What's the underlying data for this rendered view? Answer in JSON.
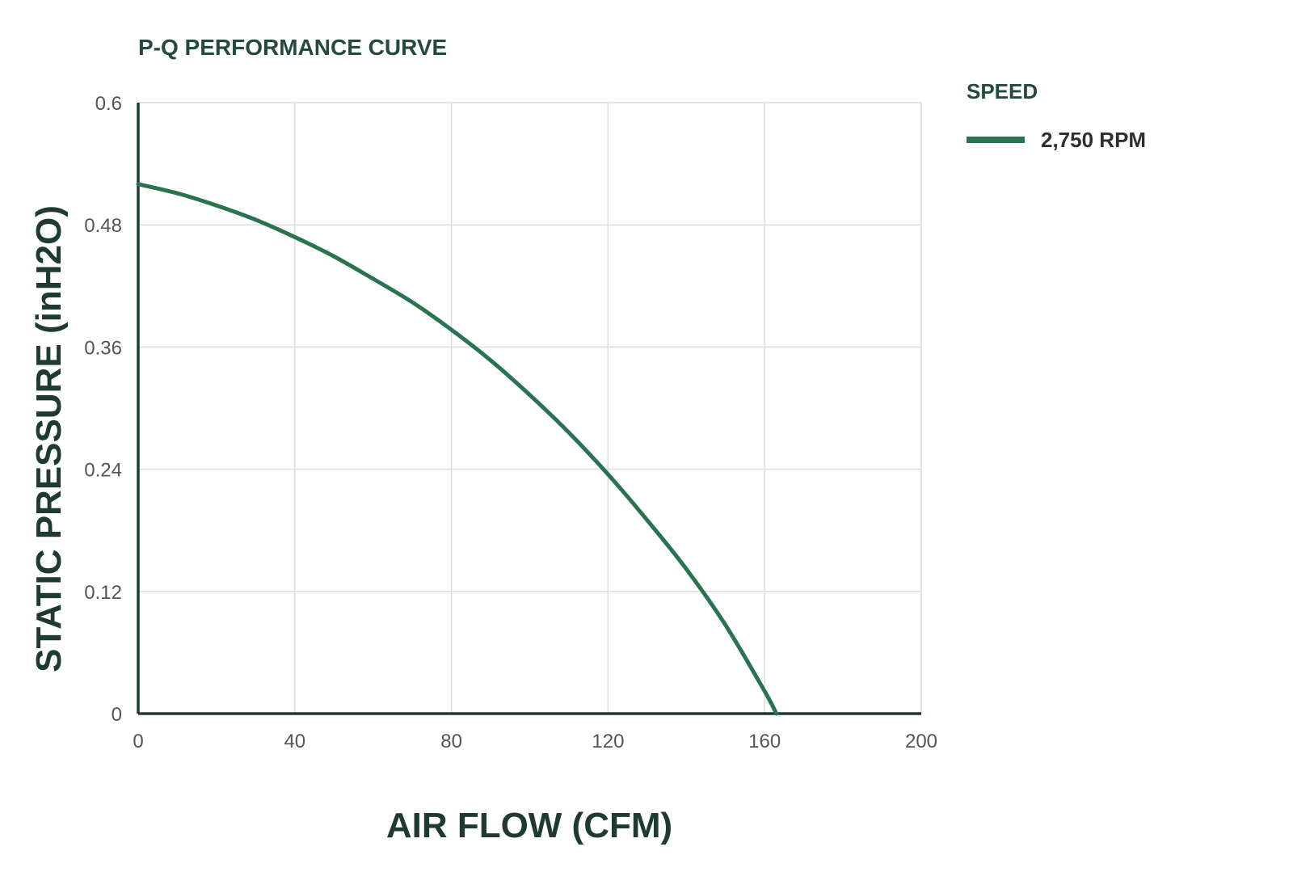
{
  "chart_data": {
    "type": "line",
    "title": "P-Q PERFORMANCE CURVE",
    "xlabel": "AIR FLOW (CFM)",
    "ylabel": "STATIC PRESSURE (inH2O)",
    "xlim": [
      0,
      200
    ],
    "ylim": [
      0,
      0.6
    ],
    "xticks": [
      "0",
      "40",
      "80",
      "120",
      "160",
      "200"
    ],
    "yticks": [
      "0",
      "0.12",
      "0.24",
      "0.36",
      "0.48",
      "0.6"
    ],
    "grid": true,
    "legend_title": "SPEED",
    "legend_position": "right",
    "series": [
      {
        "name": "2,750 RPM",
        "color": "#2a7350",
        "x": [
          0,
          10,
          20,
          30,
          40,
          50,
          60,
          70,
          80,
          90,
          100,
          110,
          120,
          130,
          140,
          150,
          160,
          163
        ],
        "y": [
          0.52,
          0.511,
          0.499,
          0.485,
          0.468,
          0.449,
          0.427,
          0.404,
          0.377,
          0.347,
          0.313,
          0.276,
          0.235,
          0.19,
          0.142,
          0.087,
          0.022,
          0.0
        ]
      }
    ]
  }
}
